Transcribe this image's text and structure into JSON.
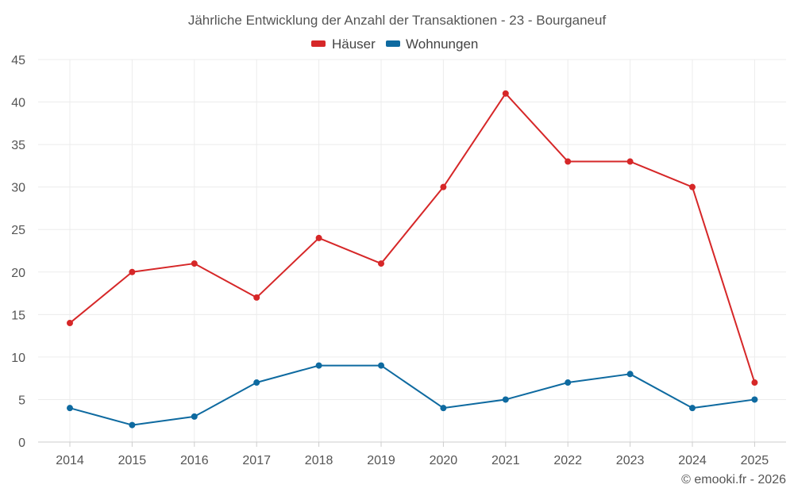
{
  "chart_data": {
    "type": "line",
    "title": "Jährliche Entwicklung der Anzahl der Transaktionen - 23 - Bourganeuf",
    "xlabel": "",
    "ylabel": "",
    "categories": [
      "2014",
      "2015",
      "2016",
      "2017",
      "2018",
      "2019",
      "2020",
      "2021",
      "2022",
      "2023",
      "2024",
      "2025"
    ],
    "ylim": [
      0,
      45
    ],
    "yticks": [
      0,
      5,
      10,
      15,
      20,
      25,
      30,
      35,
      40,
      45
    ],
    "grid": true,
    "legend_position": "top-center",
    "series": [
      {
        "name": "Häuser",
        "color": "#d62728",
        "values": [
          14,
          20,
          21,
          17,
          24,
          21,
          30,
          41,
          33,
          33,
          30,
          7
        ]
      },
      {
        "name": "Wohnungen",
        "color": "#0e6aa0",
        "values": [
          4,
          2,
          3,
          7,
          9,
          9,
          4,
          5,
          7,
          8,
          4,
          5
        ]
      }
    ]
  },
  "credit": "© emooki.fr - 2026"
}
